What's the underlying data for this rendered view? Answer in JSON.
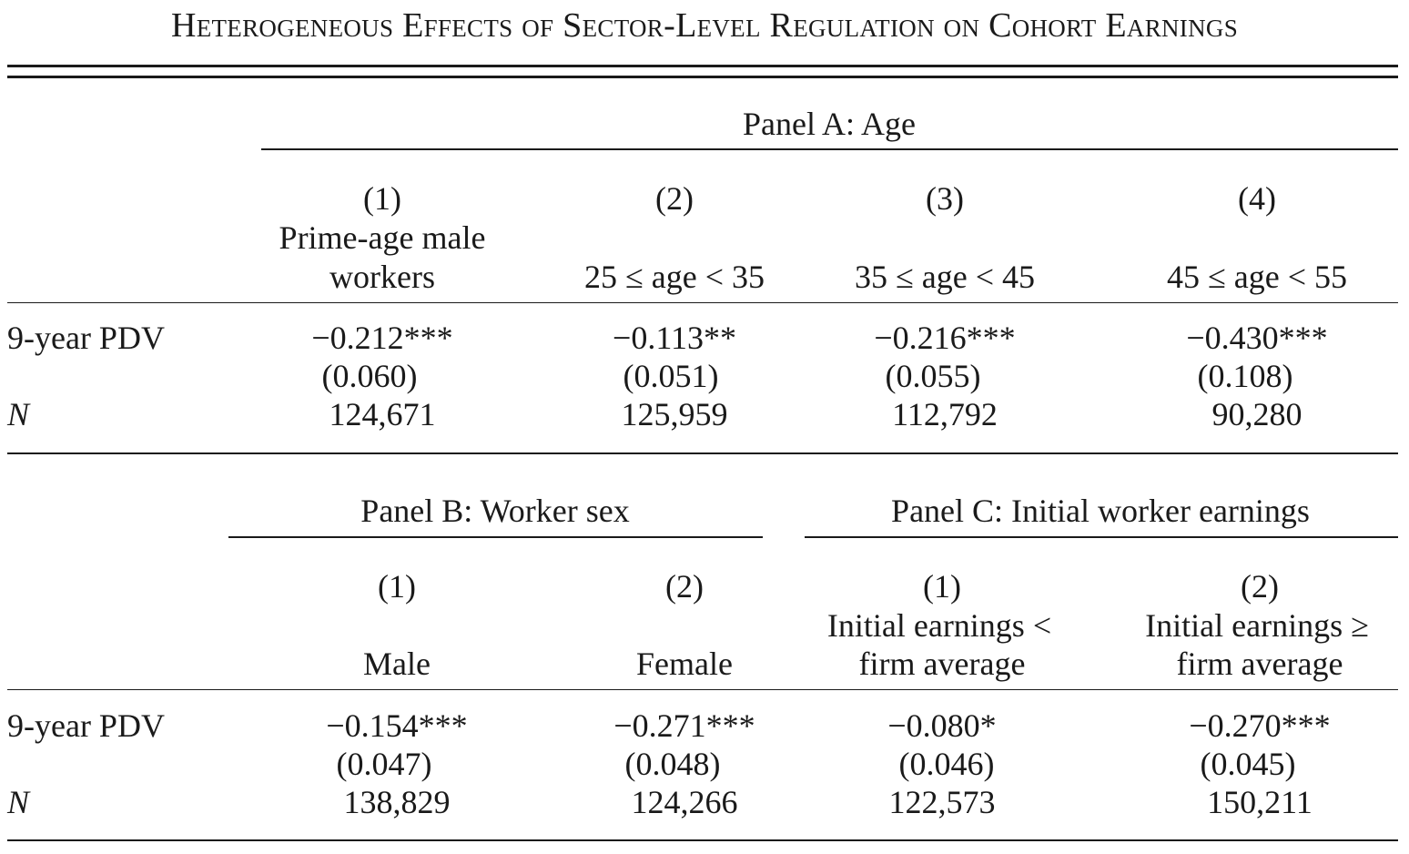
{
  "title": "Heterogeneous Effects of Sector-Level Regulation on Cohort Earnings",
  "row_labels": {
    "pdv": "9-year PDV",
    "n": "N"
  },
  "panel_a": {
    "title": "Panel A: Age",
    "columns": [
      {
        "num": "(1)",
        "label_line1": "Prime-age male",
        "label_line2": "workers",
        "coef": "−0.212***",
        "se": "(0.060)",
        "n": "124,671"
      },
      {
        "num": "(2)",
        "label_line1": "",
        "label_line2": "25 ≤ age < 35",
        "coef": "−0.113**",
        "se": "(0.051)",
        "n": "125,959"
      },
      {
        "num": "(3)",
        "label_line1": "",
        "label_line2": "35 ≤ age < 45",
        "coef": "−0.216***",
        "se": "(0.055)",
        "n": "112,792"
      },
      {
        "num": "(4)",
        "label_line1": "",
        "label_line2": "45 ≤ age < 55",
        "coef": "−0.430***",
        "se": "(0.108)",
        "n": "90,280"
      }
    ]
  },
  "panel_b": {
    "title": "Panel B: Worker sex",
    "columns": [
      {
        "num": "(1)",
        "label_line1": "",
        "label_line2": "Male",
        "coef": "−0.154***",
        "se": "(0.047)",
        "n": "138,829"
      },
      {
        "num": "(2)",
        "label_line1": "",
        "label_line2": "Female",
        "coef": "−0.271***",
        "se": "(0.048)",
        "n": "124,266"
      }
    ]
  },
  "panel_c": {
    "title": "Panel C: Initial worker earnings",
    "columns": [
      {
        "num": "(1)",
        "label_line1": "Initial earnings <",
        "label_line2": "firm average",
        "coef": "−0.080*",
        "se": "(0.046)",
        "n": "122,573"
      },
      {
        "num": "(2)",
        "label_line1": "Initial earnings ≥",
        "label_line2": "firm average",
        "coef": "−0.270***",
        "se": "(0.045)",
        "n": "150,211"
      }
    ]
  }
}
